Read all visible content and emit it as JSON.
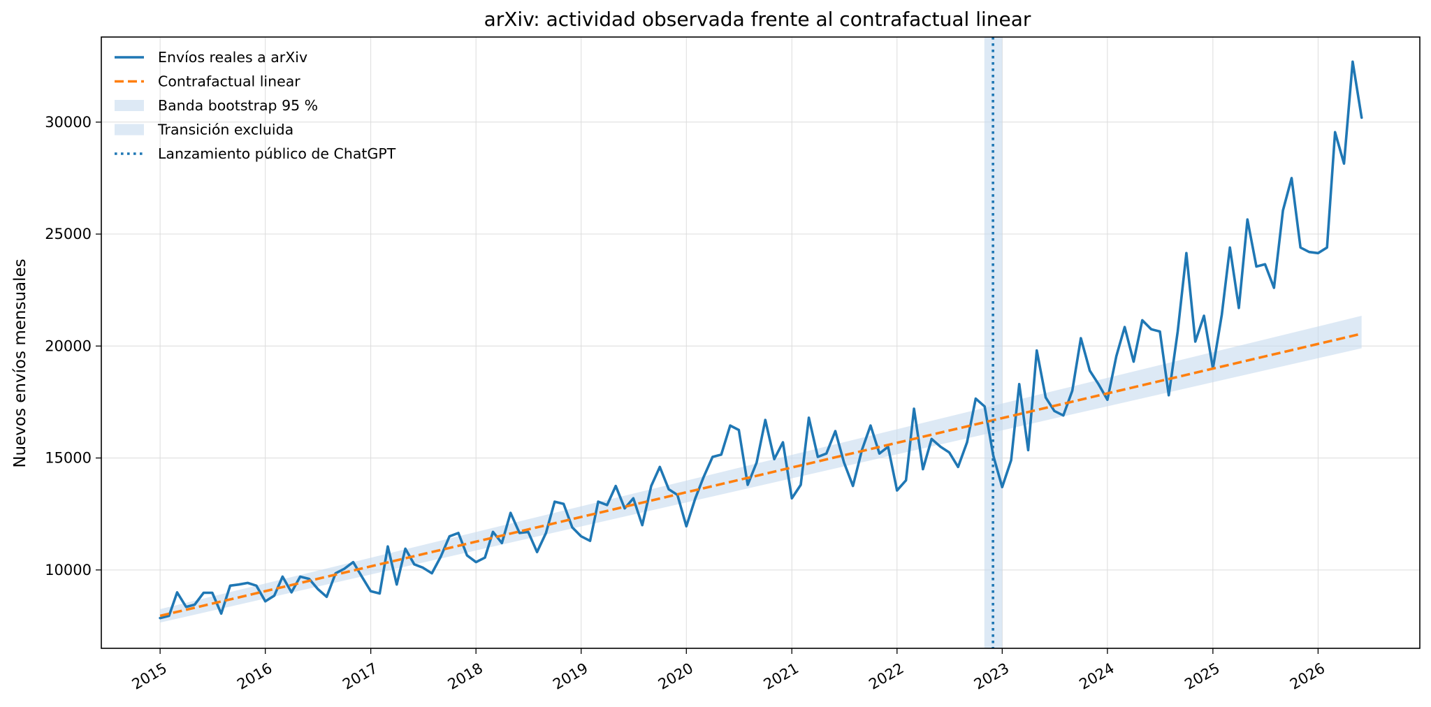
{
  "chart_data": {
    "type": "line",
    "title": "arXiv: actividad observada frente al contrafactual linear",
    "xlabel": "",
    "ylabel": "Nuevos envíos mensuales",
    "x_tick_labels": [
      "2015",
      "2016",
      "2017",
      "2018",
      "2019",
      "2020",
      "2021",
      "2022",
      "2023",
      "2024",
      "2025",
      "2026"
    ],
    "y_tick_labels": [
      "10000",
      "15000",
      "20000",
      "25000",
      "30000"
    ],
    "y_ticks": [
      10000,
      15000,
      20000,
      25000,
      30000
    ],
    "xlim": [
      "2014-06-11",
      "2026-12-20"
    ],
    "ylim": [
      6500,
      33800
    ],
    "grid": true,
    "legend_position": "top-left",
    "colors": {
      "observed": "#1f77b4",
      "counterfactual": "#ff7f0e",
      "band": "#c6dbef",
      "transition": "#c6dbef",
      "launch": "#1f77b4"
    },
    "series": [
      {
        "name": "Envíos reales a arXiv",
        "style": "solid",
        "x_start": "2015-01",
        "frequency": "monthly",
        "values": [
          7850,
          7950,
          9000,
          8350,
          8450,
          8980,
          8980,
          8050,
          9300,
          9350,
          9420,
          9300,
          8600,
          8850,
          9700,
          9000,
          9700,
          9600,
          9150,
          8800,
          9850,
          10050,
          10350,
          9700,
          9050,
          8950,
          11050,
          9350,
          10950,
          10250,
          10100,
          9850,
          10600,
          11500,
          11650,
          10650,
          10350,
          10550,
          11700,
          11200,
          12550,
          11650,
          11700,
          10800,
          11650,
          13050,
          12950,
          11900,
          11500,
          11300,
          13050,
          12900,
          13750,
          12750,
          13200,
          12000,
          13750,
          14600,
          13600,
          13350,
          11950,
          13200,
          14150,
          15050,
          15150,
          16450,
          16250,
          13800,
          14800,
          16700,
          14950,
          15700,
          13200,
          13800,
          16800,
          15050,
          15200,
          16200,
          14800,
          13750,
          15350,
          16450,
          15200,
          15500,
          13550,
          14000,
          17200,
          14500,
          15850,
          15500,
          15250,
          14600,
          15700,
          17650,
          17300,
          15100,
          13700,
          14900,
          18300,
          15350,
          19800,
          17700,
          17100,
          16900,
          18000,
          20350,
          18900,
          18300,
          17600,
          19550,
          20850,
          19300,
          21150,
          20750,
          20650,
          17800,
          20650,
          24150,
          20200,
          21350,
          19000,
          21400,
          24400,
          21700,
          25650,
          23550,
          23650,
          22600,
          26050,
          27500,
          24400,
          24200,
          24150,
          24400,
          29550,
          28150,
          32700,
          30200
        ]
      },
      {
        "name": "Contrafactual linear",
        "style": "dashed",
        "x_start": "2015-01",
        "x_end": "2026-06",
        "values": [
          7950,
          20550
        ]
      }
    ],
    "band": {
      "name": "Banda bootstrap 95 %",
      "x_start": "2015-01",
      "x_end": "2026-06",
      "lower": [
        7650,
        19900
      ],
      "upper": [
        8250,
        21350
      ]
    },
    "transition": {
      "name": "Transición excluida",
      "x_start": "2022-10-31",
      "x_end": "2023-01-01"
    },
    "vline": {
      "name": "Lanzamiento público de ChatGPT",
      "x": "2022-11-30",
      "style": "dotted"
    }
  }
}
